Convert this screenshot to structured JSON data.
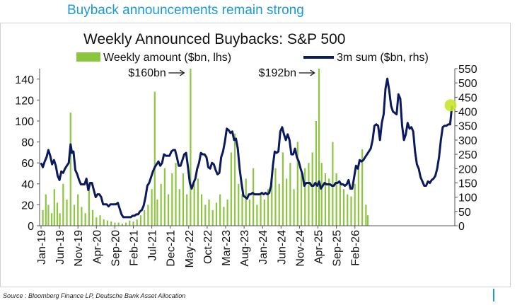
{
  "header": {
    "title": "Buyback announcements remain strong"
  },
  "source": "Source : Bloomberg Finance LP, Deutsche Bank Asset Allocation",
  "colors": {
    "bar": "#8cc63f",
    "line": "#0b1a5e",
    "accent": "#1a9ad6",
    "highlight": "#c8e62a"
  },
  "chart_data": {
    "type": "bar",
    "title": "Weekly Announced Buybacks: S&P 500",
    "legend": {
      "bar": "Weekly amount ($bn, lhs)",
      "line": "3m sum ($bn, rhs)",
      "placement": "top"
    },
    "ylim_left": [
      0,
      150
    ],
    "yticks_left": [
      0,
      20,
      40,
      60,
      80,
      100,
      120,
      140
    ],
    "ylim_right": [
      0,
      550
    ],
    "yticks_right": [
      0,
      50,
      100,
      150,
      200,
      250,
      300,
      350,
      400,
      450,
      500,
      550
    ],
    "x_tick_labels": [
      "Jan-19",
      "Jun-19",
      "Nov-19",
      "Apr-20",
      "Sep-20",
      "Feb-21",
      "Jul-21",
      "Dec-21",
      "May-22",
      "Oct-22",
      "Mar-23",
      "Aug-23",
      "Jan-24",
      "Jun-24",
      "Nov-24",
      "Apr-25",
      "Sep-25",
      "Feb-26"
    ],
    "annotations": [
      {
        "text": "$160bn",
        "month": 40.5
      },
      {
        "text": "$192bn",
        "month": 75.8
      }
    ],
    "bar_series": {
      "name": "Weekly amount ($bn, lhs)",
      "points": [
        [
          0.5,
          15
        ],
        [
          1.3,
          30
        ],
        [
          2.0,
          20
        ],
        [
          2.9,
          12
        ],
        [
          3.6,
          35
        ],
        [
          4.4,
          22
        ],
        [
          5.1,
          12
        ],
        [
          6.0,
          40
        ],
        [
          7.0,
          25
        ],
        [
          8.0,
          108
        ],
        [
          9.0,
          20
        ],
        [
          10.0,
          30
        ],
        [
          11.0,
          18
        ],
        [
          12.0,
          12
        ],
        [
          13.0,
          40
        ],
        [
          14.0,
          15
        ],
        [
          15.0,
          8
        ],
        [
          16.0,
          10
        ],
        [
          17.0,
          6
        ],
        [
          18.0,
          5
        ],
        [
          19.0,
          4
        ],
        [
          20.0,
          3
        ],
        [
          21.0,
          3
        ],
        [
          22.0,
          2
        ],
        [
          23.0,
          3
        ],
        [
          24.0,
          5
        ],
        [
          25.0,
          4
        ],
        [
          26.0,
          6
        ],
        [
          27.0,
          10
        ],
        [
          28.0,
          15
        ],
        [
          29.0,
          20
        ],
        [
          30.0,
          35
        ],
        [
          30.8,
          128
        ],
        [
          31.5,
          25
        ],
        [
          32.5,
          40
        ],
        [
          33.5,
          55
        ],
        [
          34.5,
          30
        ],
        [
          35.5,
          50
        ],
        [
          36.5,
          60
        ],
        [
          37.5,
          35
        ],
        [
          38.5,
          50
        ],
        [
          39.5,
          30
        ],
        [
          40.5,
          150
        ],
        [
          41.5,
          40
        ],
        [
          42.5,
          45
        ],
        [
          43.5,
          30
        ],
        [
          44.5,
          20
        ],
        [
          45.5,
          25
        ],
        [
          46.5,
          15
        ],
        [
          47.5,
          22
        ],
        [
          48.5,
          30
        ],
        [
          49.5,
          18
        ],
        [
          50.5,
          25
        ],
        [
          51.5,
          70
        ],
        [
          52.5,
          88
        ],
        [
          53.5,
          40
        ],
        [
          54.5,
          30
        ],
        [
          55.5,
          45
        ],
        [
          56.5,
          25
        ],
        [
          57.5,
          55
        ],
        [
          58.5,
          20
        ],
        [
          59.5,
          30
        ],
        [
          60.5,
          25
        ],
        [
          61.5,
          35
        ],
        [
          62.5,
          45
        ],
        [
          63.5,
          55
        ],
        [
          64.5,
          40
        ],
        [
          65.5,
          70
        ],
        [
          66.5,
          45
        ],
        [
          67.5,
          60
        ],
        [
          68.5,
          35
        ],
        [
          69.5,
          80
        ],
        [
          70.5,
          50
        ],
        [
          71.5,
          55
        ],
        [
          72.5,
          60
        ],
        [
          73.5,
          70
        ],
        [
          74.5,
          100
        ],
        [
          75.3,
          150
        ],
        [
          76.0,
          60
        ],
        [
          77.0,
          50
        ],
        [
          78.0,
          45
        ],
        [
          79.0,
          80
        ],
        [
          80.0,
          50
        ],
        [
          81.0,
          40
        ],
        [
          82.0,
          35
        ],
        [
          83.0,
          30
        ],
        [
          84.0,
          28
        ],
        [
          85.0,
          40
        ],
        [
          86.0,
          55
        ],
        [
          87.0,
          73
        ],
        [
          88.0,
          20
        ],
        [
          88.5,
          10
        ]
      ]
    },
    "line_series": {
      "name": "3m sum ($bn, rhs)",
      "points": [
        [
          0,
          220
        ],
        [
          0.5,
          205
        ],
        [
          1.0,
          225
        ],
        [
          1.5,
          240
        ],
        [
          2.0,
          265
        ],
        [
          2.5,
          245
        ],
        [
          3.0,
          215
        ],
        [
          3.5,
          230
        ],
        [
          4.0,
          210
        ],
        [
          4.5,
          175
        ],
        [
          5.0,
          160
        ],
        [
          5.5,
          190
        ],
        [
          6.0,
          185
        ],
        [
          6.5,
          200
        ],
        [
          7.0,
          210
        ],
        [
          7.5,
          220
        ],
        [
          8.0,
          285
        ],
        [
          8.4,
          255
        ],
        [
          8.8,
          260
        ],
        [
          9.3,
          195
        ],
        [
          9.8,
          180
        ],
        [
          10.3,
          160
        ],
        [
          10.8,
          145
        ],
        [
          11.3,
          145
        ],
        [
          11.8,
          145
        ],
        [
          12.3,
          165
        ],
        [
          12.8,
          125
        ],
        [
          13.3,
          150
        ],
        [
          13.8,
          150
        ],
        [
          14.3,
          125
        ],
        [
          14.8,
          100
        ],
        [
          15.3,
          110
        ],
        [
          15.8,
          110
        ],
        [
          16.3,
          100
        ],
        [
          16.8,
          75
        ],
        [
          17.3,
          75
        ],
        [
          17.8,
          75
        ],
        [
          18.3,
          68
        ],
        [
          18.8,
          75
        ],
        [
          19.3,
          75
        ],
        [
          19.8,
          75
        ],
        [
          20.3,
          75
        ],
        [
          20.8,
          80
        ],
        [
          21.3,
          60
        ],
        [
          21.8,
          40
        ],
        [
          22.3,
          30
        ],
        [
          22.8,
          30
        ],
        [
          23.3,
          30
        ],
        [
          23.8,
          30
        ],
        [
          24.3,
          30
        ],
        [
          24.8,
          35
        ],
        [
          25.3,
          35
        ],
        [
          25.8,
          40
        ],
        [
          26.3,
          40
        ],
        [
          26.8,
          50
        ],
        [
          27.3,
          55
        ],
        [
          27.8,
          70
        ],
        [
          28.3,
          100
        ],
        [
          28.8,
          140
        ],
        [
          29.3,
          150
        ],
        [
          29.8,
          170
        ],
        [
          30.3,
          190
        ],
        [
          30.8,
          205
        ],
        [
          31.3,
          215
        ],
        [
          31.8,
          225
        ],
        [
          32.3,
          210
        ],
        [
          32.8,
          220
        ],
        [
          33.3,
          250
        ],
        [
          33.8,
          245
        ],
        [
          34.3,
          245
        ],
        [
          34.8,
          245
        ],
        [
          35.3,
          260
        ],
        [
          35.8,
          265
        ],
        [
          36.3,
          265
        ],
        [
          36.8,
          240
        ],
        [
          37.3,
          210
        ],
        [
          37.8,
          210
        ],
        [
          38.3,
          230
        ],
        [
          38.8,
          250
        ],
        [
          39.3,
          255
        ],
        [
          39.8,
          205
        ],
        [
          40.3,
          150
        ],
        [
          40.8,
          130
        ],
        [
          41.3,
          150
        ],
        [
          41.8,
          165
        ],
        [
          42.3,
          200
        ],
        [
          42.8,
          220
        ],
        [
          43.3,
          255
        ],
        [
          43.8,
          250
        ],
        [
          44.3,
          250
        ],
        [
          44.8,
          240
        ],
        [
          45.3,
          205
        ],
        [
          45.8,
          200
        ],
        [
          46.3,
          220
        ],
        [
          46.8,
          215
        ],
        [
          47.3,
          195
        ],
        [
          47.8,
          180
        ],
        [
          48.3,
          185
        ],
        [
          48.8,
          240
        ],
        [
          49.3,
          260
        ],
        [
          49.8,
          295
        ],
        [
          50.3,
          340
        ],
        [
          50.8,
          335
        ],
        [
          51.3,
          325
        ],
        [
          51.8,
          330
        ],
        [
          52.3,
          300
        ],
        [
          52.8,
          305
        ],
        [
          53.3,
          270
        ],
        [
          53.8,
          200
        ],
        [
          54.3,
          150
        ],
        [
          54.8,
          105
        ],
        [
          55.3,
          100
        ],
        [
          55.8,
          95
        ],
        [
          56.3,
          110
        ],
        [
          56.8,
          110
        ],
        [
          57.3,
          115
        ],
        [
          57.8,
          110
        ],
        [
          58.3,
          110
        ],
        [
          58.8,
          110
        ],
        [
          59.3,
          110
        ],
        [
          59.8,
          115
        ],
        [
          60.3,
          110
        ],
        [
          60.8,
          115
        ],
        [
          61.3,
          110
        ],
        [
          61.8,
          115
        ],
        [
          62.3,
          140
        ],
        [
          62.8,
          210
        ],
        [
          63.3,
          260
        ],
        [
          63.8,
          255
        ],
        [
          64.3,
          260
        ],
        [
          64.8,
          330
        ],
        [
          65.3,
          345
        ],
        [
          65.8,
          320
        ],
        [
          66.3,
          300
        ],
        [
          66.8,
          320
        ],
        [
          67.3,
          300
        ],
        [
          67.8,
          250
        ],
        [
          68.3,
          250
        ],
        [
          68.8,
          270
        ],
        [
          69.3,
          240
        ],
        [
          69.8,
          225
        ],
        [
          70.3,
          200
        ],
        [
          70.8,
          180
        ],
        [
          71.3,
          140
        ],
        [
          71.8,
          150
        ],
        [
          72.3,
          150
        ],
        [
          72.8,
          150
        ],
        [
          73.3,
          140
        ],
        [
          73.8,
          140
        ],
        [
          74.3,
          150
        ],
        [
          74.8,
          140
        ],
        [
          75.3,
          155
        ],
        [
          75.8,
          130
        ],
        [
          76.3,
          140
        ],
        [
          76.8,
          150
        ],
        [
          77.3,
          145
        ],
        [
          77.8,
          145
        ],
        [
          78.3,
          145
        ],
        [
          78.8,
          140
        ],
        [
          79.3,
          140
        ],
        [
          79.8,
          150
        ],
        [
          80.3,
          150
        ],
        [
          80.8,
          155
        ],
        [
          81.3,
          145
        ],
        [
          81.8,
          145
        ],
        [
          82.3,
          140
        ],
        [
          82.8,
          145
        ],
        [
          83.3,
          160
        ],
        [
          83.8,
          130
        ],
        [
          84.3,
          130
        ],
        [
          84.8,
          170
        ],
        [
          85.3,
          210
        ],
        [
          85.8,
          200
        ],
        [
          86.3,
          230
        ],
        [
          86.8,
          225
        ],
        [
          87.3,
          230
        ],
        [
          87.8,
          240
        ],
        [
          88.3,
          250
        ],
        [
          88.8,
          260
        ],
        [
          89.3,
          270
        ],
        [
          89.8,
          300
        ],
        [
          90.3,
          350
        ],
        [
          90.8,
          355
        ],
        [
          91.3,
          350
        ],
        [
          91.8,
          300
        ],
        [
          92.3,
          360
        ],
        [
          92.8,
          390
        ],
        [
          93.3,
          480
        ],
        [
          93.8,
          515
        ],
        [
          94.3,
          475
        ],
        [
          94.8,
          420
        ],
        [
          95.3,
          400
        ],
        [
          95.8,
          395
        ],
        [
          96.3,
          390
        ],
        [
          96.8,
          460
        ],
        [
          97.3,
          445
        ],
        [
          97.8,
          350
        ],
        [
          98.3,
          300
        ],
        [
          98.8,
          320
        ],
        [
          99.3,
          360
        ],
        [
          99.8,
          340
        ],
        [
          100.3,
          345
        ],
        [
          100.8,
          330
        ],
        [
          101.3,
          260
        ],
        [
          101.8,
          215
        ],
        [
          102.3,
          200
        ],
        [
          102.8,
          170
        ],
        [
          103.3,
          155
        ],
        [
          103.8,
          140
        ],
        [
          104.3,
          140
        ],
        [
          104.8,
          155
        ],
        [
          105.3,
          150
        ],
        [
          105.8,
          160
        ],
        [
          106.3,
          165
        ],
        [
          106.8,
          175
        ],
        [
          107.3,
          200
        ],
        [
          107.8,
          240
        ],
        [
          108.3,
          300
        ],
        [
          108.8,
          345
        ],
        [
          109.3,
          350
        ],
        [
          109.8,
          350
        ],
        [
          110.3,
          355
        ],
        [
          110.8,
          355
        ],
        [
          111.3,
          420
        ]
      ]
    },
    "highlight_point": [
      111.3,
      115
    ]
  }
}
